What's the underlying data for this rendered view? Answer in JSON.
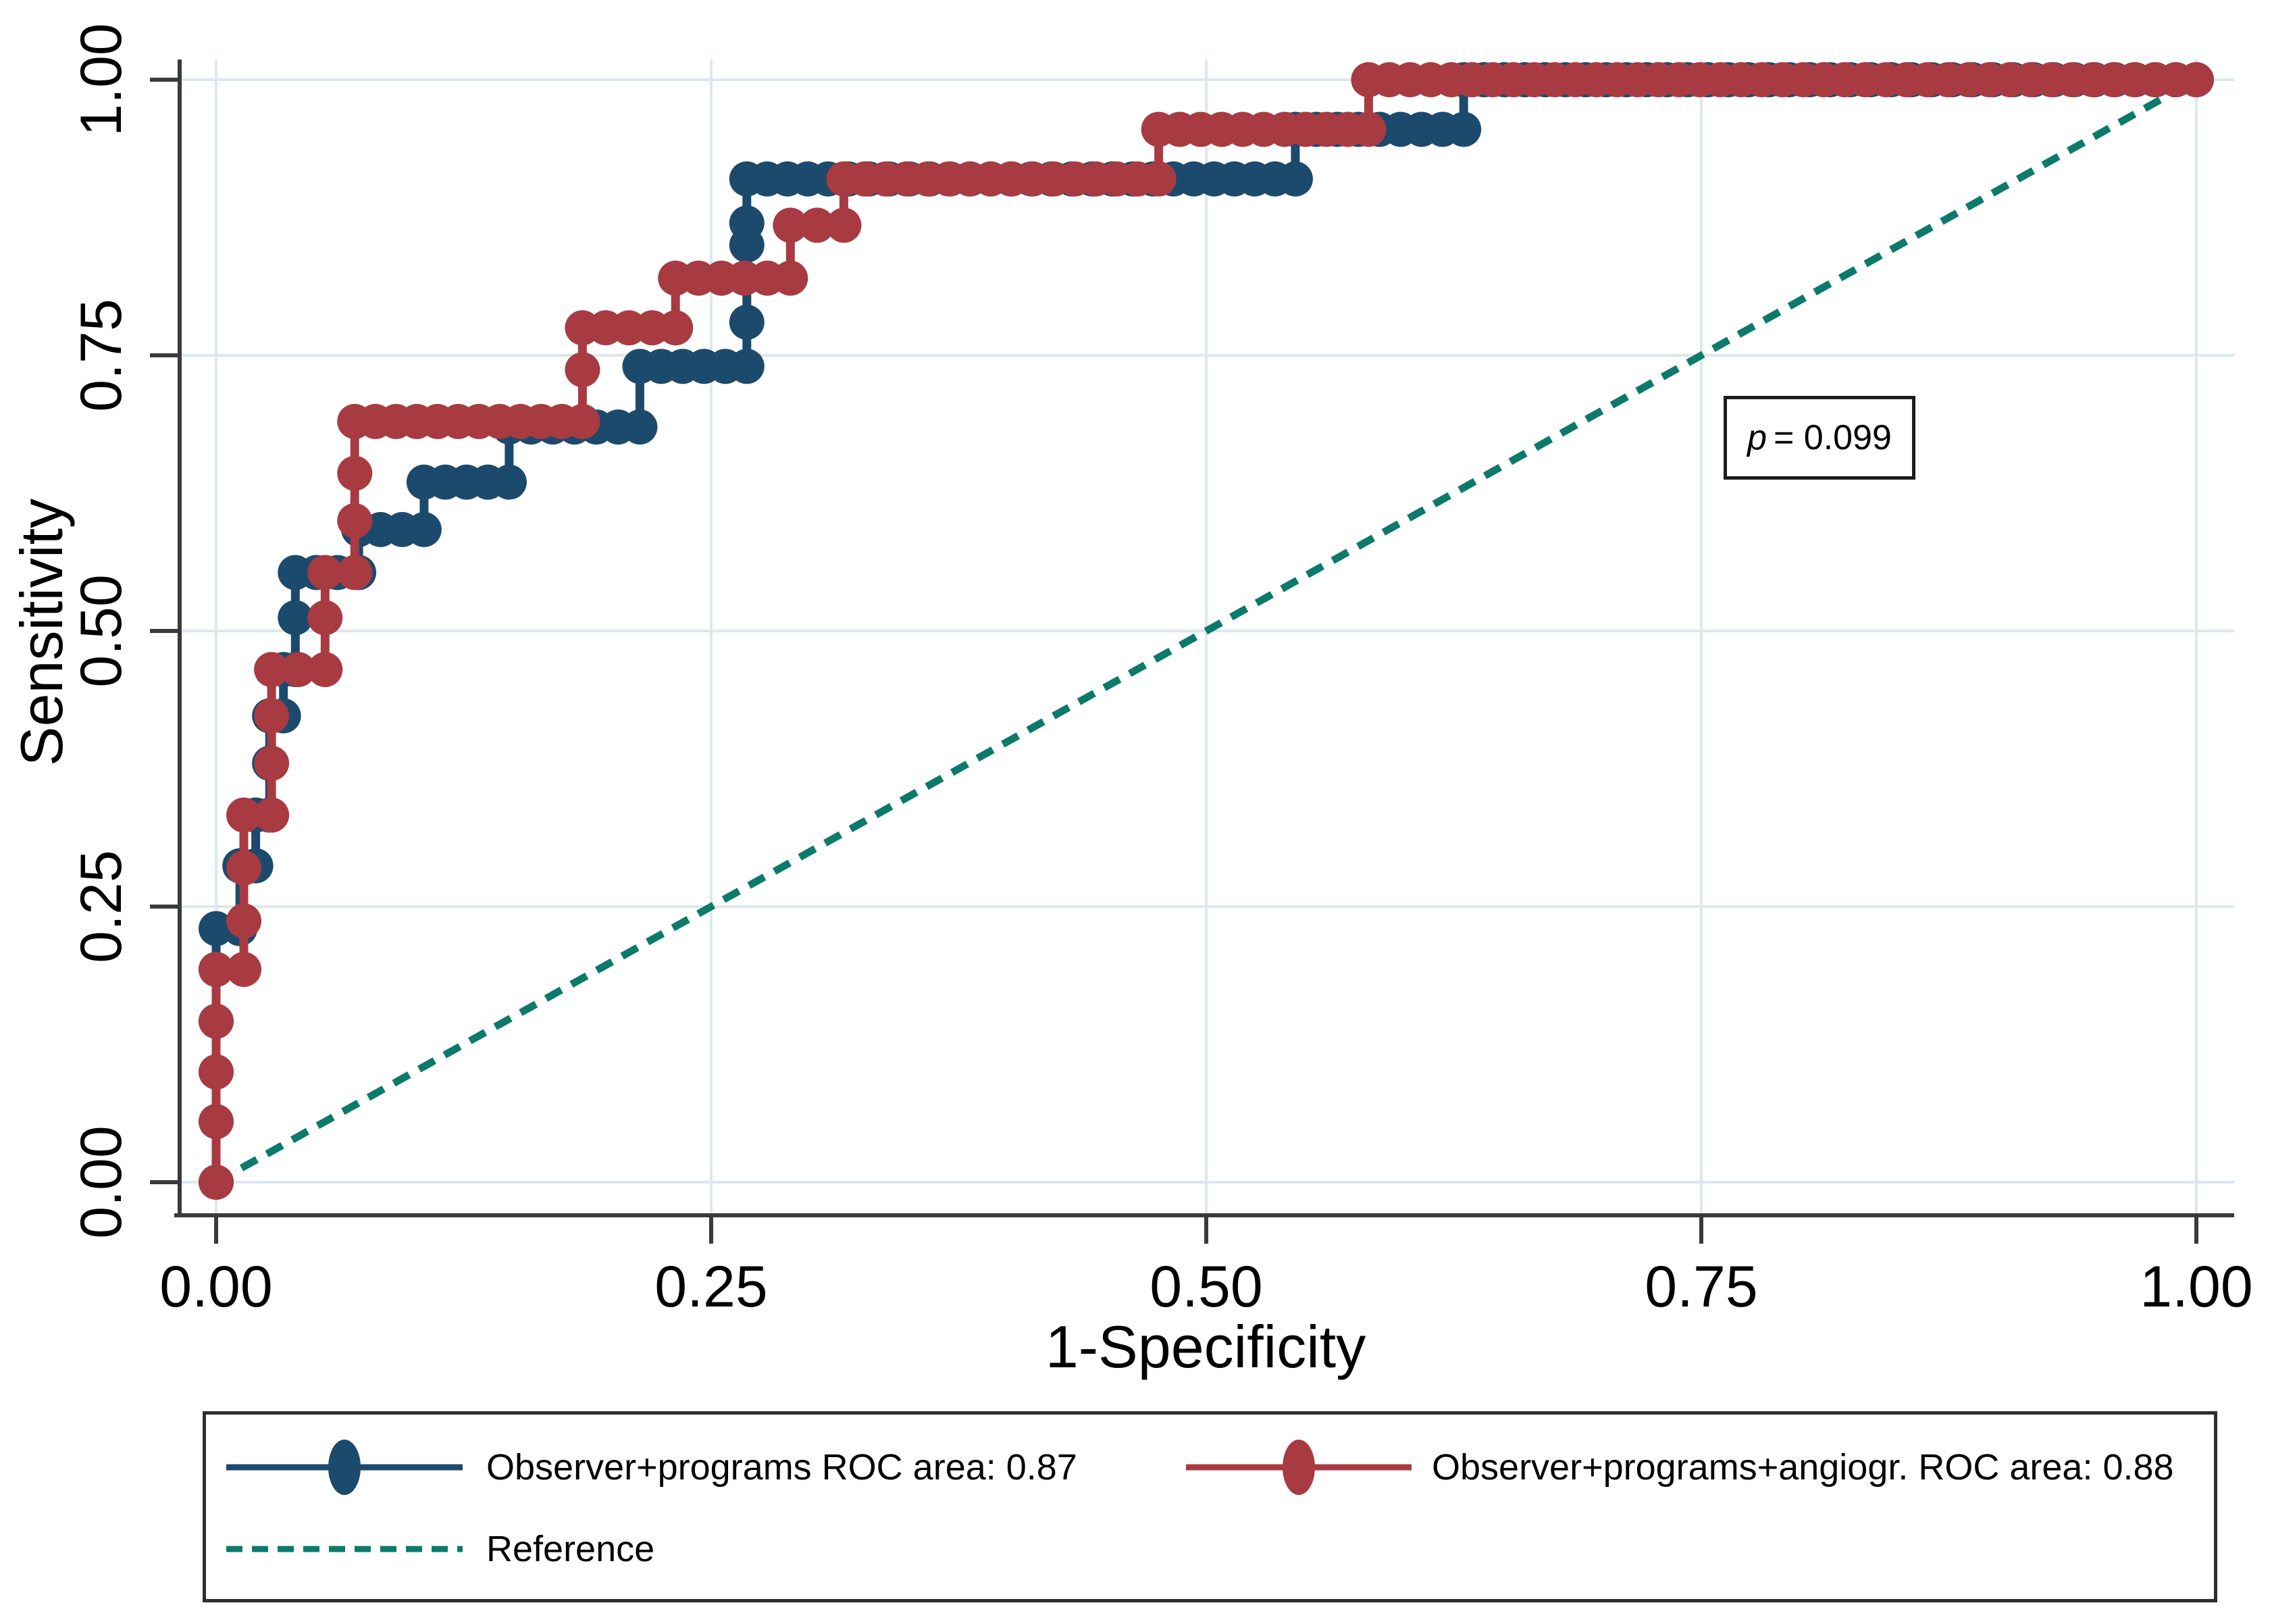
{
  "axes": {
    "x_title": "1-Specificity",
    "y_title": "Sensitivity",
    "x_ticks": [
      "0.00",
      "0.25",
      "0.50",
      "0.75",
      "1.00"
    ],
    "y_ticks": [
      "0.00",
      "0.25",
      "0.50",
      "0.75",
      "1.00"
    ]
  },
  "annotation": {
    "p_symbol": "p",
    "p_rest": "= 0.099"
  },
  "legend": {
    "items": [
      {
        "label": "Observer+programs ROC area: 0.87"
      },
      {
        "label": "Observer+programs+angiogr. ROC area: 0.88"
      },
      {
        "label": "Reference"
      }
    ]
  },
  "colors": {
    "blue": "#1c4a6d",
    "red": "#a83b42",
    "reference": "#0c7a6b",
    "grid": "#dce8ed",
    "axis": "#3a3a3a",
    "text": "#000000"
  },
  "chart_data": {
    "type": "line",
    "subtype": "roc-step-comparison",
    "title": "",
    "xlabel": "1-Specificity",
    "ylabel": "Sensitivity",
    "xlim": [
      0,
      1
    ],
    "ylim": [
      0,
      1
    ],
    "x_tick_values": [
      0,
      0.25,
      0.5,
      0.75,
      1.0
    ],
    "y_tick_values": [
      0,
      0.25,
      0.5,
      0.75,
      1.0
    ],
    "grid": true,
    "legend_position": "bottom",
    "annotation": {
      "text": "p = 0.099",
      "x": 0.81,
      "y": 0.68
    },
    "series": [
      {
        "name": "Observer+programs",
        "roc_area": 0.87,
        "color": "#1c4a6d",
        "marker": "circle",
        "points": [
          [
            0,
            0
          ],
          [
            0,
            0.055
          ],
          [
            0,
            0.1
          ],
          [
            0,
            0.146
          ],
          [
            0,
            0.193
          ],
          [
            0,
            0.23
          ],
          [
            0.012,
            0.23
          ],
          [
            0.012,
            0.287
          ],
          [
            0.02,
            0.287
          ],
          [
            0.02,
            0.333
          ],
          [
            0.027,
            0.333
          ],
          [
            0.027,
            0.38
          ],
          [
            0.027,
            0.423
          ],
          [
            0.034,
            0.423
          ],
          [
            0.034,
            0.465
          ],
          [
            0.04,
            0.465
          ],
          [
            0.04,
            0.512
          ],
          [
            0.04,
            0.553
          ],
          [
            0.072,
            0.553
          ],
          [
            0.072,
            0.592
          ],
          [
            0.105,
            0.592
          ],
          [
            0.105,
            0.635
          ],
          [
            0.148,
            0.635
          ],
          [
            0.148,
            0.685
          ],
          [
            0.214,
            0.685
          ],
          [
            0.214,
            0.74
          ],
          [
            0.268,
            0.74
          ],
          [
            0.268,
            0.78
          ],
          [
            0.268,
            0.85
          ],
          [
            0.268,
            0.87
          ],
          [
            0.268,
            0.91
          ],
          [
            0.545,
            0.91
          ],
          [
            0.545,
            0.955
          ],
          [
            0.63,
            0.955
          ],
          [
            0.63,
            1
          ],
          [
            1,
            1
          ]
        ]
      },
      {
        "name": "Observer+programs+angiogr.",
        "roc_area": 0.88,
        "color": "#a83b42",
        "marker": "circle",
        "points": [
          [
            0,
            0
          ],
          [
            0,
            0.055
          ],
          [
            0,
            0.1
          ],
          [
            0,
            0.146
          ],
          [
            0,
            0.193
          ],
          [
            0.014,
            0.193
          ],
          [
            0.014,
            0.237
          ],
          [
            0.014,
            0.285
          ],
          [
            0.014,
            0.333
          ],
          [
            0.028,
            0.333
          ],
          [
            0.028,
            0.38
          ],
          [
            0.028,
            0.423
          ],
          [
            0.028,
            0.465
          ],
          [
            0.055,
            0.465
          ],
          [
            0.055,
            0.512
          ],
          [
            0.055,
            0.553
          ],
          [
            0.07,
            0.553
          ],
          [
            0.07,
            0.6
          ],
          [
            0.07,
            0.643
          ],
          [
            0.07,
            0.69
          ],
          [
            0.185,
            0.69
          ],
          [
            0.185,
            0.737
          ],
          [
            0.185,
            0.775
          ],
          [
            0.232,
            0.775
          ],
          [
            0.232,
            0.82
          ],
          [
            0.29,
            0.82
          ],
          [
            0.29,
            0.868
          ],
          [
            0.317,
            0.868
          ],
          [
            0.317,
            0.91
          ],
          [
            0.476,
            0.91
          ],
          [
            0.476,
            0.955
          ],
          [
            0.582,
            0.955
          ],
          [
            0.582,
            1
          ],
          [
            1,
            1
          ]
        ]
      }
    ],
    "reference": {
      "label": "Reference",
      "style": "dashed",
      "color": "#0c7a6b",
      "from": [
        0,
        0
      ],
      "to": [
        1,
        1
      ]
    }
  }
}
